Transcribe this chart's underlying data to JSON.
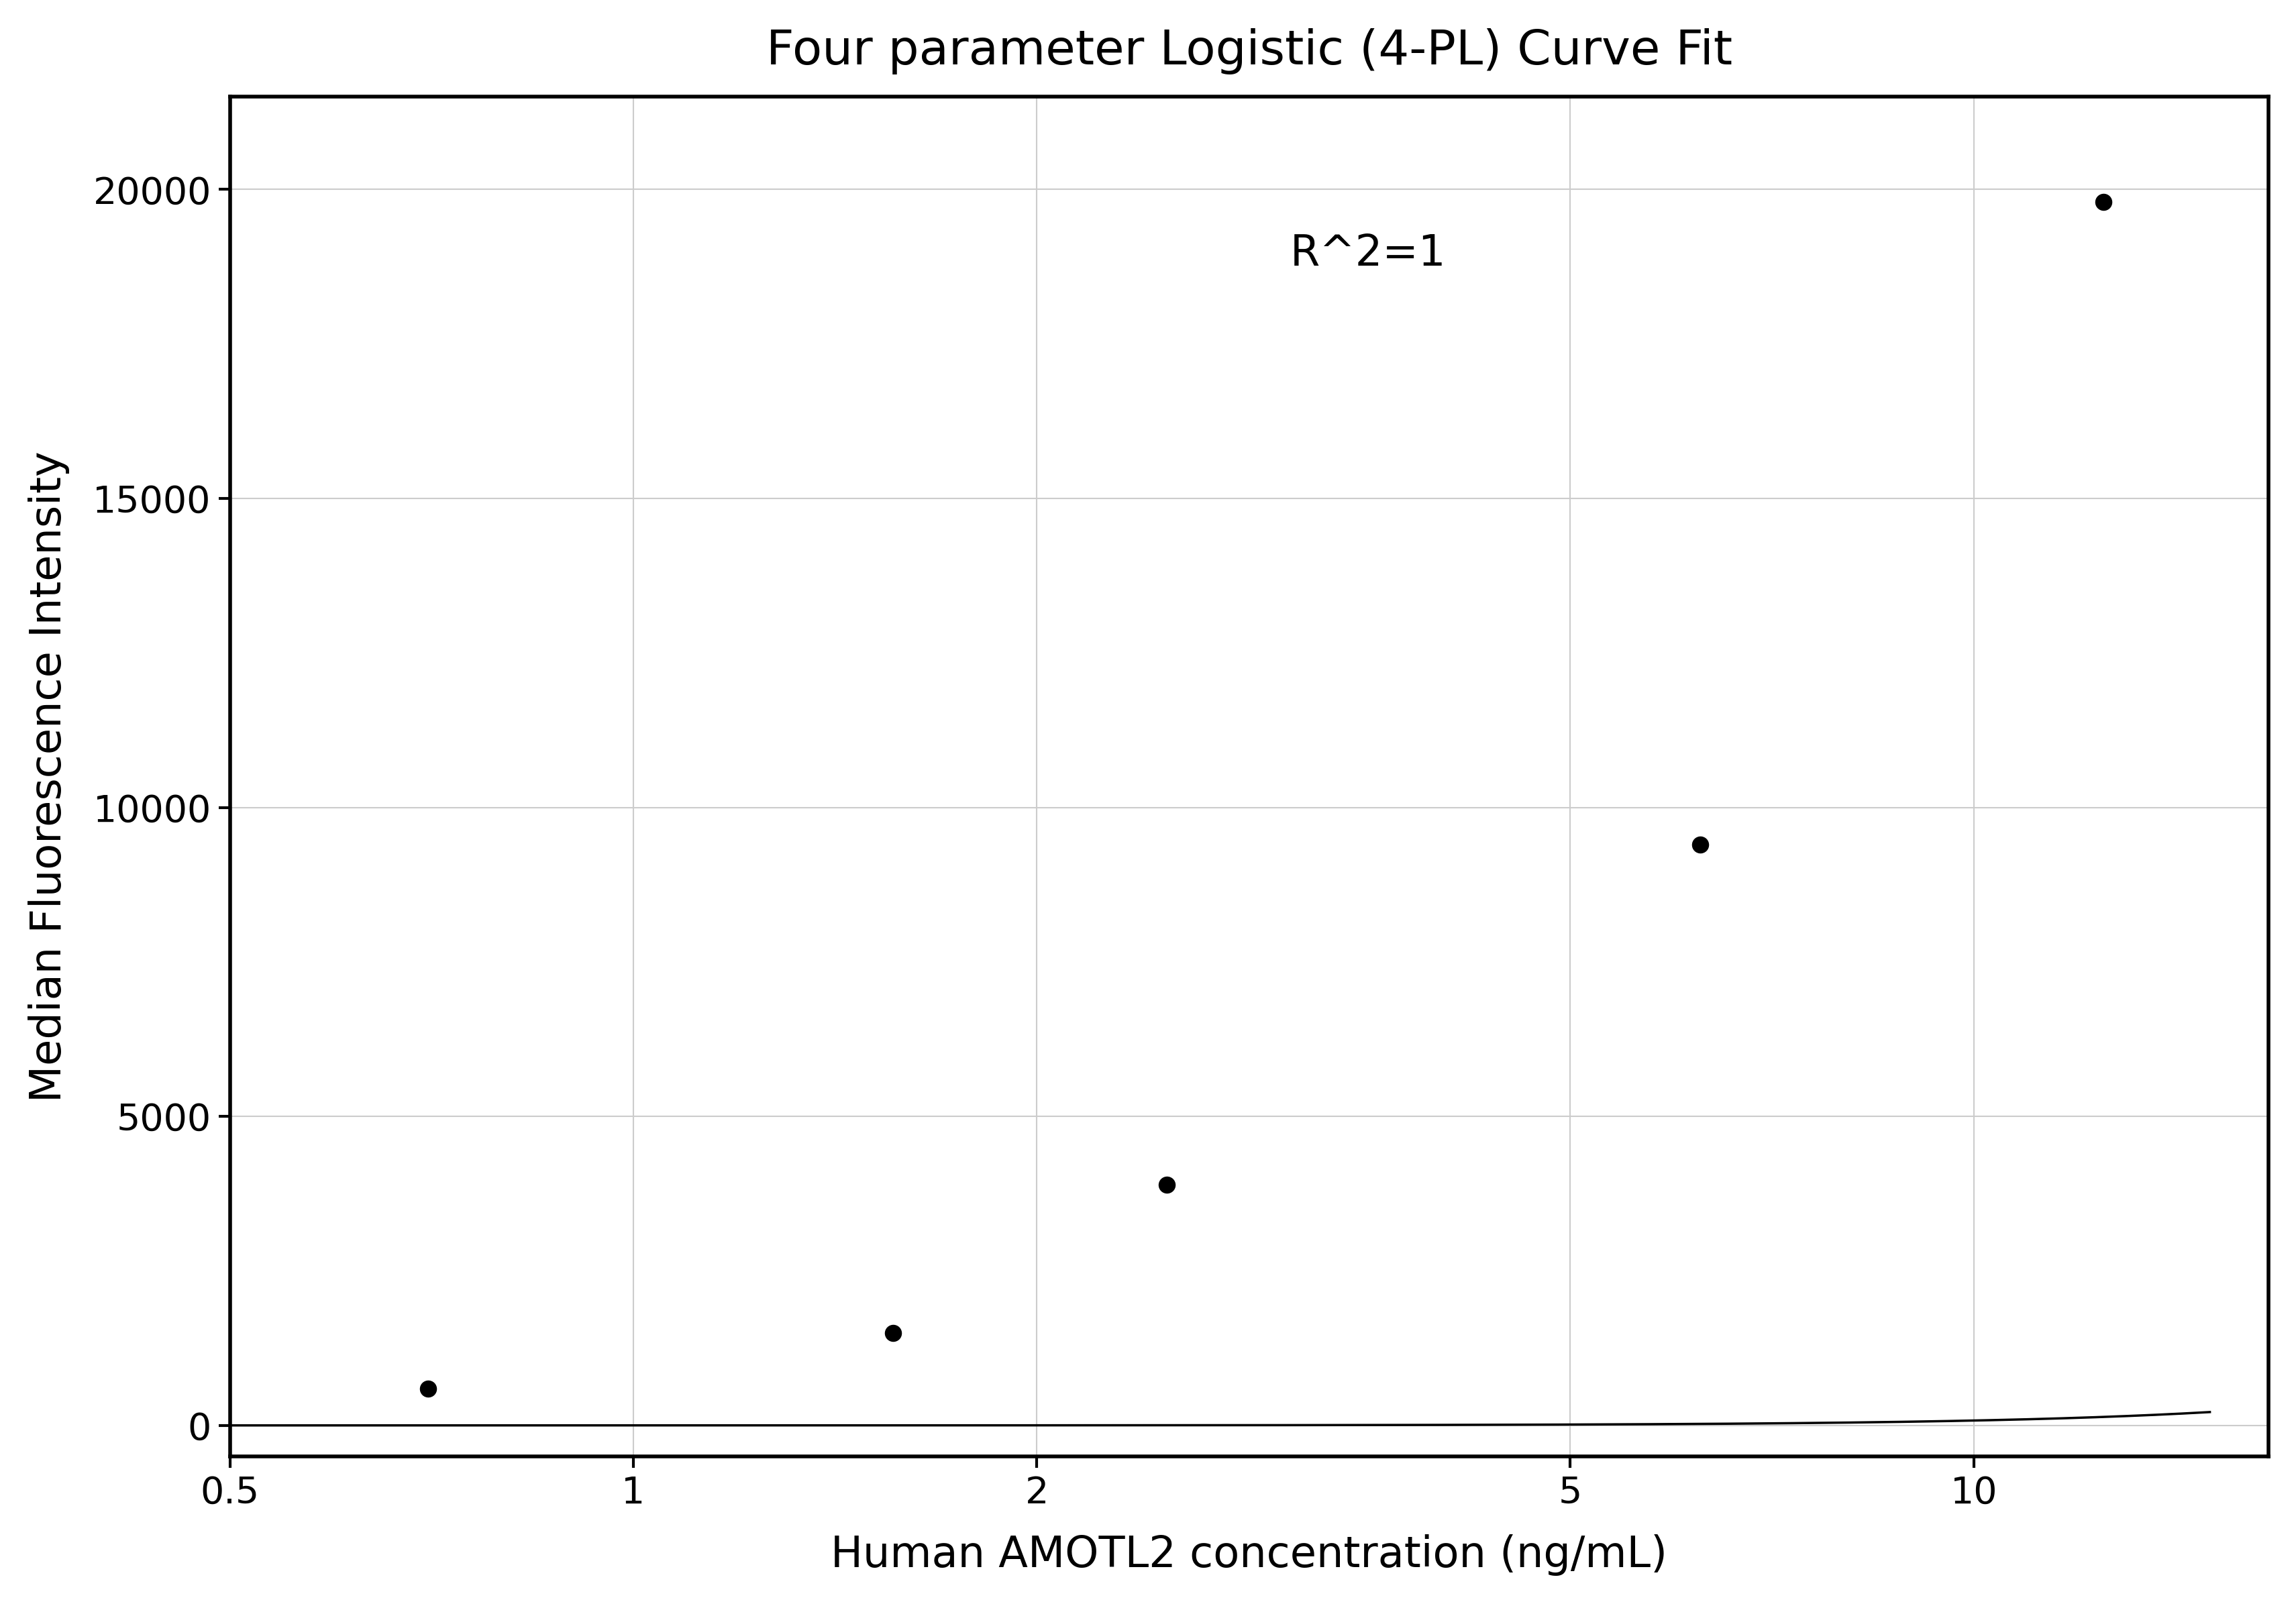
{
  "title": "Four parameter Logistic (4-PL) Curve Fit",
  "xlabel": "Human AMOTL2 concentration (ng/mL)",
  "ylabel": "Median Fluorescence Intensity",
  "annotation": "R^2=1",
  "data_x": [
    0.703125,
    1.5625,
    2.5,
    6.25,
    12.5
  ],
  "data_y": [
    600,
    1500,
    3900,
    9400,
    19800
  ],
  "ylim": [
    -500,
    21500
  ],
  "yticks": [
    0,
    5000,
    10000,
    15000,
    20000
  ],
  "xticks": [
    0.5,
    1,
    2,
    5,
    10
  ],
  "background_color": "#ffffff",
  "grid_color": "#cccccc",
  "line_color": "#000000",
  "marker_color": "#000000",
  "title_fontsize": 52,
  "label_fontsize": 46,
  "tick_fontsize": 40,
  "annotation_fontsize": 46,
  "figure_width": 34.23,
  "figure_height": 23.91
}
